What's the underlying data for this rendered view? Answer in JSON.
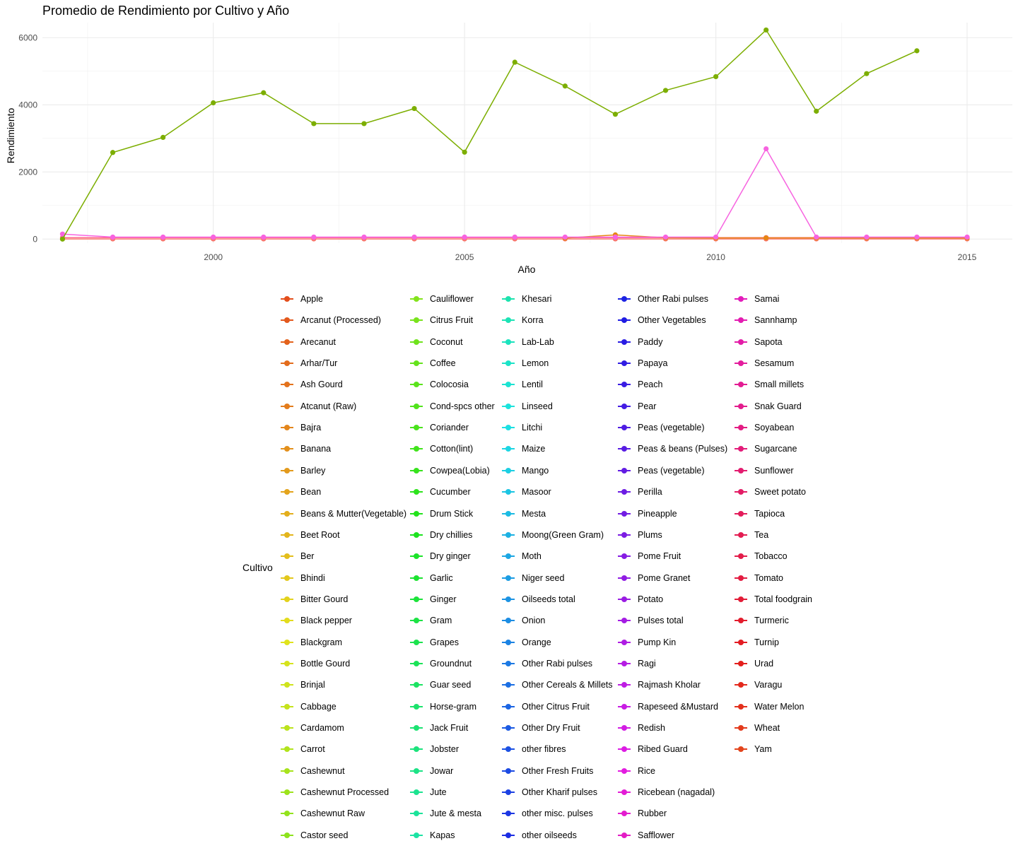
{
  "chart_data": {
    "type": "line",
    "title": "Promedio de Rendimiento por Cultivo y Año",
    "xlabel": "Año",
    "ylabel": "Rendimiento",
    "xlim": [
      1996.6,
      2015.9
    ],
    "ylim": [
      -120,
      6450
    ],
    "x_ticks": [
      2000,
      2005,
      2010,
      2015
    ],
    "y_ticks": [
      0,
      2000,
      4000,
      6000
    ],
    "grid": true,
    "legend_title": "Cultivo",
    "legend_position": "bottom",
    "years": [
      1997,
      1998,
      1999,
      2000,
      2001,
      2002,
      2003,
      2004,
      2005,
      2006,
      2007,
      2008,
      2009,
      2010,
      2011,
      2012,
      2013,
      2014,
      2015
    ],
    "categories": [
      "Apple",
      "Arcanut (Processed)",
      "Arecanut",
      "Arhar/Tur",
      "Ash Gourd",
      "Atcanut (Raw)",
      "Bajra",
      "Banana",
      "Barley",
      "Bean",
      "Beans & Mutter(Vegetable)",
      "Beet Root",
      "Ber",
      "Bhindi",
      "Bitter Gourd",
      "Black pepper",
      "Blackgram",
      "Bottle Gourd",
      "Brinjal",
      "Cabbage",
      "Cardamom",
      "Carrot",
      "Cashewnut",
      "Cashewnut Processed",
      "Cashewnut Raw",
      "Castor seed",
      "Cauliflower",
      "Citrus Fruit",
      "Coconut",
      "Coffee",
      "Colocosia",
      "Cond-spcs other",
      "Coriander",
      "Cotton(lint)",
      "Cowpea(Lobia)",
      "Cucumber",
      "Drum Stick",
      "Dry chillies",
      "Dry ginger",
      "Garlic",
      "Ginger",
      "Gram",
      "Grapes",
      "Groundnut",
      "Guar seed",
      "Horse-gram",
      "Jack Fruit",
      "Jobster",
      "Jowar",
      "Jute",
      "Jute & mesta",
      "Kapas",
      "Khesari",
      "Korra",
      "Lab-Lab",
      "Lemon",
      "Lentil",
      "Linseed",
      "Litchi",
      "Maize",
      "Mango",
      "Masoor",
      "Mesta",
      "Moong(Green Gram)",
      "Moth",
      "Niger seed",
      "Oilseeds total",
      "Onion",
      "Orange",
      "Other  Rabi pulses",
      "Other Cereals & Millets",
      "Other Citrus Fruit",
      "Other Dry Fruit",
      "other fibres",
      "Other Fresh Fruits",
      "Other Kharif pulses",
      "other misc. pulses",
      "other oilseeds",
      "Other Rabi pulses",
      "Other Vegetables",
      "Paddy",
      "Papaya",
      "Peach",
      "Pear",
      "Peas  (vegetable)",
      "Peas & beans (Pulses)",
      "Peas (vegetable)",
      "Perilla",
      "Pineapple",
      "Plums",
      "Pome Fruit",
      "Pome Granet",
      "Potato",
      "Pulses total",
      "Pump Kin",
      "Ragi",
      "Rajmash Kholar",
      "Rapeseed &Mustard",
      "Redish",
      "Ribed Guard",
      "Rice",
      "Ricebean (nagadal)",
      "Rubber",
      "Safflower",
      "Samai",
      "Sannhamp",
      "Sapota",
      "Sesamum",
      "Small millets",
      "Snak Guard",
      "Soyabean",
      "Sugarcane",
      "Sunflower",
      "Sweet potato",
      "Tapioca",
      "Tea",
      "Tobacco",
      "Tomato",
      "Total foodgrain",
      "Turmeric",
      "Turnip",
      "Urad",
      "Varagu",
      "Water Melon",
      "Wheat",
      "Yam"
    ],
    "series": [
      {
        "name": "Coconut",
        "color": "#7CAE00",
        "x": [
          1997,
          1998,
          1999,
          2000,
          2001,
          2002,
          2003,
          2004,
          2005,
          2006,
          2007,
          2008,
          2009,
          2010,
          2011,
          2012,
          2013,
          2014
        ],
        "values": [
          0,
          2580,
          3030,
          4060,
          4360,
          3440,
          3440,
          3890,
          2590,
          5270,
          4560,
          3720,
          4430,
          4840,
          6230,
          3810,
          4930,
          5610
        ]
      },
      {
        "name": "Sugarcane",
        "color": "#F763E0",
        "x": [
          1997,
          1998,
          1999,
          2000,
          2001,
          2002,
          2003,
          2004,
          2005,
          2006,
          2007,
          2008,
          2009,
          2010,
          2011,
          2012,
          2013,
          2014,
          2015
        ],
        "values": [
          150,
          60,
          60,
          60,
          60,
          60,
          60,
          60,
          60,
          60,
          60,
          60,
          60,
          60,
          2690,
          60,
          60,
          60,
          60
        ]
      },
      {
        "name": "Banana",
        "color": "#E68613",
        "x": [
          2007,
          2008,
          2009,
          2010,
          2011,
          2012,
          2013,
          2014,
          2015
        ],
        "values": [
          30,
          125,
          40,
          35,
          35,
          35,
          35,
          35,
          35
        ]
      },
      {
        "name": "Tapioca",
        "color": "#FF6C91",
        "x": [
          1997,
          1998,
          1999,
          2000,
          2001,
          2002,
          2003,
          2004,
          2005,
          2006,
          2007,
          2008,
          2009,
          2010,
          2011,
          2012,
          2013,
          2014,
          2015
        ],
        "values": [
          45,
          45,
          45,
          45,
          45,
          45,
          45,
          45,
          45,
          45,
          45,
          45,
          45,
          45,
          45,
          45,
          45,
          45,
          45
        ]
      },
      {
        "name": "Apple",
        "color": "#F8766D",
        "x": [
          1997,
          1998,
          1999,
          2000,
          2001,
          2002,
          2003,
          2004,
          2005,
          2006,
          2007,
          2008,
          2009,
          2010,
          2011,
          2012,
          2013,
          2014,
          2015
        ],
        "values": [
          5,
          5,
          5,
          5,
          5,
          5,
          5,
          5,
          5,
          5,
          5,
          5,
          5,
          5,
          5,
          5,
          5,
          5,
          5
        ]
      }
    ]
  }
}
